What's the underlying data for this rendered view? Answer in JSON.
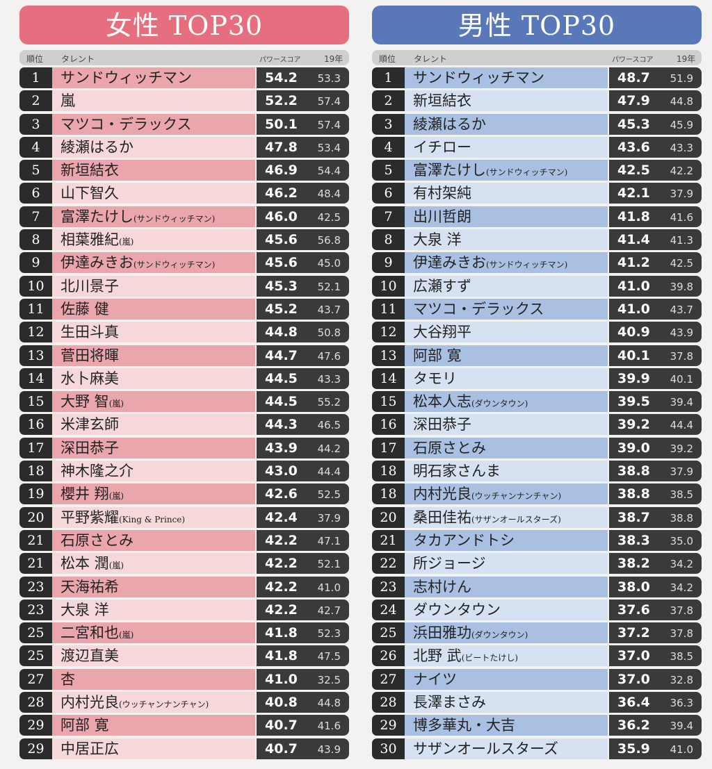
{
  "headers": {
    "rank": "順位",
    "talent": "タレント",
    "score": "パワースコア",
    "prev": "19年"
  },
  "colors": {
    "female_title": "#e56f7e",
    "male_title": "#5878b9"
  },
  "female": {
    "title": "女性 TOP30",
    "rows": [
      {
        "rank": "1",
        "name": "サンドウィッチマン",
        "note": "",
        "score": "54.2",
        "prev": "53.3"
      },
      {
        "rank": "2",
        "name": "嵐",
        "note": "",
        "score": "52.2",
        "prev": "57.4"
      },
      {
        "rank": "3",
        "name": "マツコ・デラックス",
        "note": "",
        "score": "50.1",
        "prev": "57.4"
      },
      {
        "rank": "4",
        "name": "綾瀬はるか",
        "note": "",
        "score": "47.8",
        "prev": "53.4"
      },
      {
        "rank": "5",
        "name": "新垣結衣",
        "note": "",
        "score": "46.9",
        "prev": "54.4"
      },
      {
        "rank": "6",
        "name": "山下智久",
        "note": "",
        "score": "46.2",
        "prev": "48.4"
      },
      {
        "rank": "7",
        "name": "富澤たけし",
        "note": "(サンドウィッチマン)",
        "score": "46.0",
        "prev": "42.5"
      },
      {
        "rank": "8",
        "name": "相葉雅紀",
        "note": "(嵐)",
        "score": "45.6",
        "prev": "56.8"
      },
      {
        "rank": "9",
        "name": "伊達みきお",
        "note": "(サンドウィッチマン)",
        "score": "45.6",
        "prev": "45.0"
      },
      {
        "rank": "10",
        "name": "北川景子",
        "note": "",
        "score": "45.3",
        "prev": "52.1"
      },
      {
        "rank": "11",
        "name": "佐藤 健",
        "note": "",
        "score": "45.2",
        "prev": "43.7"
      },
      {
        "rank": "12",
        "name": "生田斗真",
        "note": "",
        "score": "44.8",
        "prev": "50.8"
      },
      {
        "rank": "13",
        "name": "菅田将暉",
        "note": "",
        "score": "44.7",
        "prev": "47.6"
      },
      {
        "rank": "14",
        "name": "水卜麻美",
        "note": "",
        "score": "44.5",
        "prev": "43.3"
      },
      {
        "rank": "15",
        "name": "大野 智",
        "note": "(嵐)",
        "score": "44.5",
        "prev": "55.2"
      },
      {
        "rank": "16",
        "name": "米津玄師",
        "note": "",
        "score": "44.3",
        "prev": "46.5"
      },
      {
        "rank": "17",
        "name": "深田恭子",
        "note": "",
        "score": "43.9",
        "prev": "44.2"
      },
      {
        "rank": "18",
        "name": "神木隆之介",
        "note": "",
        "score": "43.0",
        "prev": "44.4"
      },
      {
        "rank": "19",
        "name": "櫻井 翔",
        "note": "(嵐)",
        "score": "42.6",
        "prev": "52.5"
      },
      {
        "rank": "20",
        "name": "平野紫耀",
        "note": "(King & Prince)",
        "score": "42.4",
        "prev": "37.9"
      },
      {
        "rank": "21",
        "name": "石原さとみ",
        "note": "",
        "score": "42.2",
        "prev": "47.1"
      },
      {
        "rank": "21",
        "name": "松本 潤",
        "note": "(嵐)",
        "score": "42.2",
        "prev": "52.1"
      },
      {
        "rank": "23",
        "name": "天海祐希",
        "note": "",
        "score": "42.2",
        "prev": "41.0"
      },
      {
        "rank": "23",
        "name": "大泉 洋",
        "note": "",
        "score": "42.2",
        "prev": "42.7"
      },
      {
        "rank": "25",
        "name": "二宮和也",
        "note": "(嵐)",
        "score": "41.8",
        "prev": "52.3"
      },
      {
        "rank": "25",
        "name": "渡辺直美",
        "note": "",
        "score": "41.8",
        "prev": "47.5"
      },
      {
        "rank": "27",
        "name": "杏",
        "note": "",
        "score": "41.0",
        "prev": "32.5"
      },
      {
        "rank": "28",
        "name": "内村光良",
        "note": "(ウッチャンナンチャン)",
        "score": "40.8",
        "prev": "44.8"
      },
      {
        "rank": "29",
        "name": "阿部 寛",
        "note": "",
        "score": "40.7",
        "prev": "41.6"
      },
      {
        "rank": "29",
        "name": "中居正広",
        "note": "",
        "score": "40.7",
        "prev": "43.9"
      }
    ]
  },
  "male": {
    "title": "男性 TOP30",
    "rows": [
      {
        "rank": "1",
        "name": "サンドウィッチマン",
        "note": "",
        "score": "48.7",
        "prev": "51.9"
      },
      {
        "rank": "2",
        "name": "新垣結衣",
        "note": "",
        "score": "47.9",
        "prev": "44.8"
      },
      {
        "rank": "3",
        "name": "綾瀬はるか",
        "note": "",
        "score": "45.3",
        "prev": "45.9"
      },
      {
        "rank": "4",
        "name": "イチロー",
        "note": "",
        "score": "43.6",
        "prev": "43.3"
      },
      {
        "rank": "5",
        "name": "富澤たけし",
        "note": "(サンドウィッチマン)",
        "score": "42.5",
        "prev": "42.2"
      },
      {
        "rank": "6",
        "name": "有村架純",
        "note": "",
        "score": "42.1",
        "prev": "37.9"
      },
      {
        "rank": "7",
        "name": "出川哲朗",
        "note": "",
        "score": "41.8",
        "prev": "41.6"
      },
      {
        "rank": "8",
        "name": "大泉 洋",
        "note": "",
        "score": "41.4",
        "prev": "41.3"
      },
      {
        "rank": "9",
        "name": "伊達みきお",
        "note": "(サンドウィッチマン)",
        "score": "41.2",
        "prev": "42.5"
      },
      {
        "rank": "10",
        "name": "広瀬すず",
        "note": "",
        "score": "41.0",
        "prev": "39.8"
      },
      {
        "rank": "11",
        "name": "マツコ・デラックス",
        "note": "",
        "score": "41.0",
        "prev": "43.7"
      },
      {
        "rank": "12",
        "name": "大谷翔平",
        "note": "",
        "score": "40.9",
        "prev": "43.9"
      },
      {
        "rank": "13",
        "name": "阿部 寛",
        "note": "",
        "score": "40.1",
        "prev": "37.8"
      },
      {
        "rank": "14",
        "name": "タモリ",
        "note": "",
        "score": "39.9",
        "prev": "40.1"
      },
      {
        "rank": "15",
        "name": "松本人志",
        "note": "(ダウンタウン)",
        "score": "39.5",
        "prev": "39.4"
      },
      {
        "rank": "16",
        "name": "深田恭子",
        "note": "",
        "score": "39.2",
        "prev": "44.4"
      },
      {
        "rank": "17",
        "name": "石原さとみ",
        "note": "",
        "score": "39.0",
        "prev": "39.2"
      },
      {
        "rank": "18",
        "name": "明石家さんま",
        "note": "",
        "score": "38.8",
        "prev": "37.9"
      },
      {
        "rank": "18",
        "name": "内村光良",
        "note": "(ウッチャンナンチャン)",
        "score": "38.8",
        "prev": "38.5"
      },
      {
        "rank": "20",
        "name": "桑田佳祐",
        "note": "(サザンオールスターズ)",
        "score": "38.7",
        "prev": "38.8"
      },
      {
        "rank": "21",
        "name": "タカアンドトシ",
        "note": "",
        "score": "38.3",
        "prev": "35.0"
      },
      {
        "rank": "22",
        "name": "所ジョージ",
        "note": "",
        "score": "38.2",
        "prev": "34.2"
      },
      {
        "rank": "23",
        "name": "志村けん",
        "note": "",
        "score": "38.0",
        "prev": "34.2"
      },
      {
        "rank": "24",
        "name": "ダウンタウン",
        "note": "",
        "score": "37.6",
        "prev": "37.8"
      },
      {
        "rank": "25",
        "name": "浜田雅功",
        "note": "(ダウンタウン)",
        "score": "37.2",
        "prev": "37.8"
      },
      {
        "rank": "26",
        "name": "北野 武",
        "note": "(ビートたけし)",
        "score": "37.0",
        "prev": "38.5"
      },
      {
        "rank": "27",
        "name": "ナイツ",
        "note": "",
        "score": "37.0",
        "prev": "32.8"
      },
      {
        "rank": "28",
        "name": "長澤まさみ",
        "note": "",
        "score": "36.4",
        "prev": "36.3"
      },
      {
        "rank": "29",
        "name": "博多華丸・大吉",
        "note": "",
        "score": "36.2",
        "prev": "39.4"
      },
      {
        "rank": "30",
        "name": "サザンオールスターズ",
        "note": "",
        "score": "35.9",
        "prev": "41.0"
      }
    ]
  }
}
